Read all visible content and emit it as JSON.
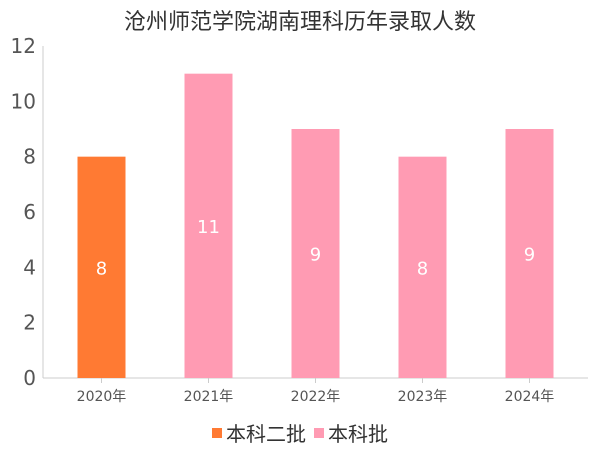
{
  "chart_data": {
    "type": "bar",
    "title": "沧州师范学院湖南理科历年录取人数",
    "categories": [
      "2020年",
      "2021年",
      "2022年",
      "2023年",
      "2024年"
    ],
    "series": [
      {
        "name": "本科二批",
        "color": "#ff7a33",
        "values": [
          8,
          null,
          null,
          null,
          null
        ]
      },
      {
        "name": "本科批",
        "color": "#ff9bb3",
        "values": [
          null,
          11,
          9,
          8,
          9
        ]
      }
    ],
    "ylim": [
      0,
      12
    ],
    "yticks": [
      0,
      2,
      4,
      6,
      8,
      10,
      12
    ],
    "grid": false,
    "legend_position": "bottom"
  }
}
